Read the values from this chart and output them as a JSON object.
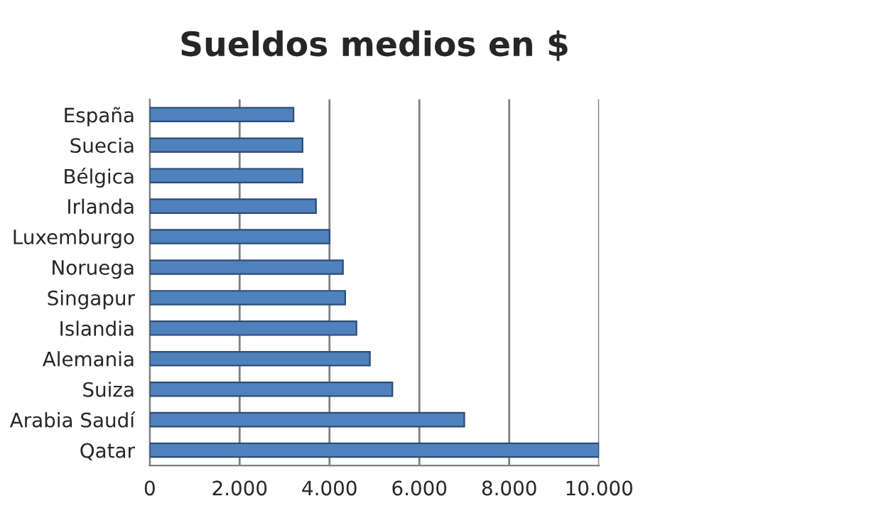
{
  "chart_data": {
    "type": "bar",
    "orientation": "horizontal",
    "title": "Sueldos medios en $",
    "categories": [
      "España",
      "Suecia",
      "Bélgica",
      "Irlanda",
      "Luxemburgo",
      "Noruega",
      "Singapur",
      "Islandia",
      "Alemania",
      "Suiza",
      "Arabia Saudí",
      "Qatar"
    ],
    "values": [
      3200,
      3400,
      3400,
      3700,
      4000,
      4300,
      4350,
      4600,
      4900,
      5400,
      7000,
      10000
    ],
    "color": "#4f81bd",
    "xlim": [
      0,
      10000
    ],
    "xticks": [
      0,
      {
        "value": 2000,
        "label": "2.000"
      },
      {
        "value": 4000,
        "label": "4.000"
      },
      {
        "value": 6000,
        "label": "6.000"
      },
      {
        "value": 8000,
        "label": "8.000"
      },
      {
        "value": 10000,
        "label": "10.000"
      }
    ],
    "grid": "x",
    "legend": false
  }
}
